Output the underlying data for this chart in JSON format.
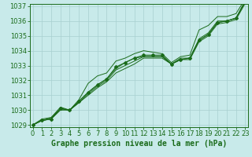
{
  "title": "Graphe pression niveau de la mer (hPa)",
  "x_values": [
    0,
    1,
    2,
    3,
    4,
    5,
    6,
    7,
    8,
    9,
    10,
    11,
    12,
    13,
    14,
    15,
    16,
    17,
    18,
    19,
    20,
    21,
    22,
    23
  ],
  "line_bottom": [
    1029.0,
    1029.3,
    1029.4,
    1030.0,
    1030.0,
    1030.5,
    1031.0,
    1031.5,
    1031.9,
    1032.5,
    1032.8,
    1033.1,
    1033.5,
    1033.5,
    1033.5,
    1033.1,
    1033.4,
    1033.4,
    1034.6,
    1035.0,
    1035.8,
    1035.9,
    1036.1,
    1037.2
  ],
  "line_mid1": [
    1029.0,
    1029.3,
    1029.4,
    1030.1,
    1030.0,
    1030.5,
    1031.1,
    1031.6,
    1032.0,
    1032.7,
    1033.0,
    1033.3,
    1033.6,
    1033.6,
    1033.6,
    1033.1,
    1033.4,
    1033.5,
    1034.7,
    1035.1,
    1035.9,
    1036.0,
    1036.2,
    1037.3
  ],
  "line_mid2": [
    1029.0,
    1029.3,
    1029.5,
    1030.1,
    1030.0,
    1030.6,
    1031.2,
    1031.7,
    1032.1,
    1032.8,
    1033.2,
    1033.5,
    1033.6,
    1033.6,
    1033.6,
    1033.1,
    1033.5,
    1033.5,
    1034.8,
    1035.2,
    1036.0,
    1036.0,
    1036.2,
    1037.4
  ],
  "line_top": [
    1029.0,
    1029.4,
    1029.5,
    1030.2,
    1030.0,
    1030.7,
    1031.8,
    1032.3,
    1032.5,
    1033.3,
    1033.5,
    1033.8,
    1034.0,
    1033.9,
    1033.8,
    1033.2,
    1033.6,
    1033.7,
    1035.4,
    1035.7,
    1036.3,
    1036.3,
    1036.5,
    1037.5
  ],
  "line_marker": [
    1029.0,
    1029.3,
    1029.4,
    1030.1,
    1030.0,
    1030.6,
    1031.2,
    1031.7,
    1032.1,
    1032.9,
    1033.2,
    1033.5,
    1033.7,
    1033.7,
    1033.7,
    1033.1,
    1033.4,
    1033.5,
    1034.7,
    1035.1,
    1035.9,
    1036.0,
    1036.2,
    1037.3
  ],
  "ylim_min": 1029.0,
  "ylim_max": 1037.0,
  "xlim_min": 0,
  "xlim_max": 23,
  "yticks": [
    1029,
    1030,
    1031,
    1032,
    1033,
    1034,
    1035,
    1036,
    1037
  ],
  "xticks": [
    0,
    1,
    2,
    3,
    4,
    5,
    6,
    7,
    8,
    9,
    10,
    11,
    12,
    13,
    14,
    15,
    16,
    17,
    18,
    19,
    20,
    21,
    22,
    23
  ],
  "line_color": "#1a6b1a",
  "bg_color": "#c8eaea",
  "grid_color": "#a8d0d0",
  "title_color": "#1a6b1a",
  "tick_color": "#1a6b1a",
  "title_fontsize": 7.0,
  "tick_fontsize": 6.0
}
